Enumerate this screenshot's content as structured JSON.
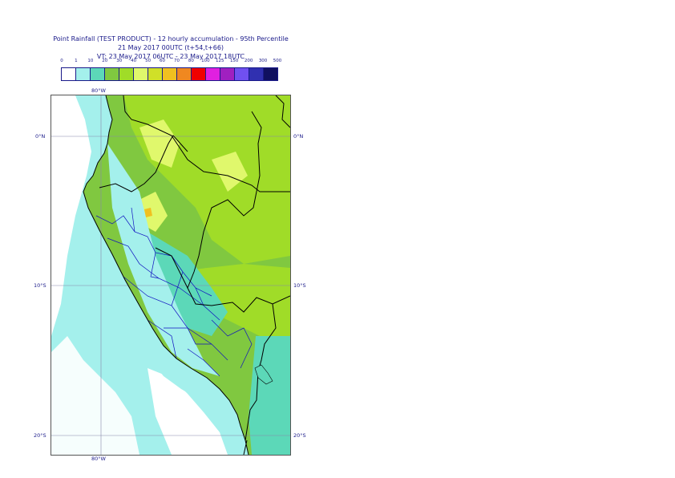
{
  "title": {
    "line1": "Point Rainfall (TEST PRODUCT) - 12 hourly accumulation - 95th Percentile",
    "line2": "21 May 2017 00UTC (t+54,t+66)",
    "line3": "VT: 23 May 2017 06UTC - 23 May 2017 18UTC"
  },
  "legend": {
    "ticks": [
      "0",
      "1",
      "10",
      "20",
      "30",
      "40",
      "50",
      "60",
      "70",
      "80",
      "100",
      "125",
      "150",
      "200",
      "300",
      "500"
    ],
    "colors": [
      "#ffffff",
      "#a4f0ec",
      "#5cd8b8",
      "#80c840",
      "#a0dc28",
      "#e0f86c",
      "#d0e028",
      "#f0c020",
      "#f08820",
      "#f00000",
      "#e020e0",
      "#a020c0",
      "#7050f0",
      "#3030b0",
      "#101060"
    ]
  },
  "map": {
    "lon_label_top": "80°W",
    "lon_label_bottom": "80°W",
    "lat_labels": [
      "0°N",
      "10°S",
      "20°S"
    ],
    "colors": {
      "sea_light": "#a4f0ec",
      "sea_mid": "#5cd8b8",
      "land_green": "#80c840",
      "land_lime": "#a0dc28",
      "land_yellow": "#e0f86c",
      "land_gold": "#f0c020",
      "border": "#000000",
      "admin_border": "#1010c0",
      "grid": "#8888aa"
    }
  }
}
